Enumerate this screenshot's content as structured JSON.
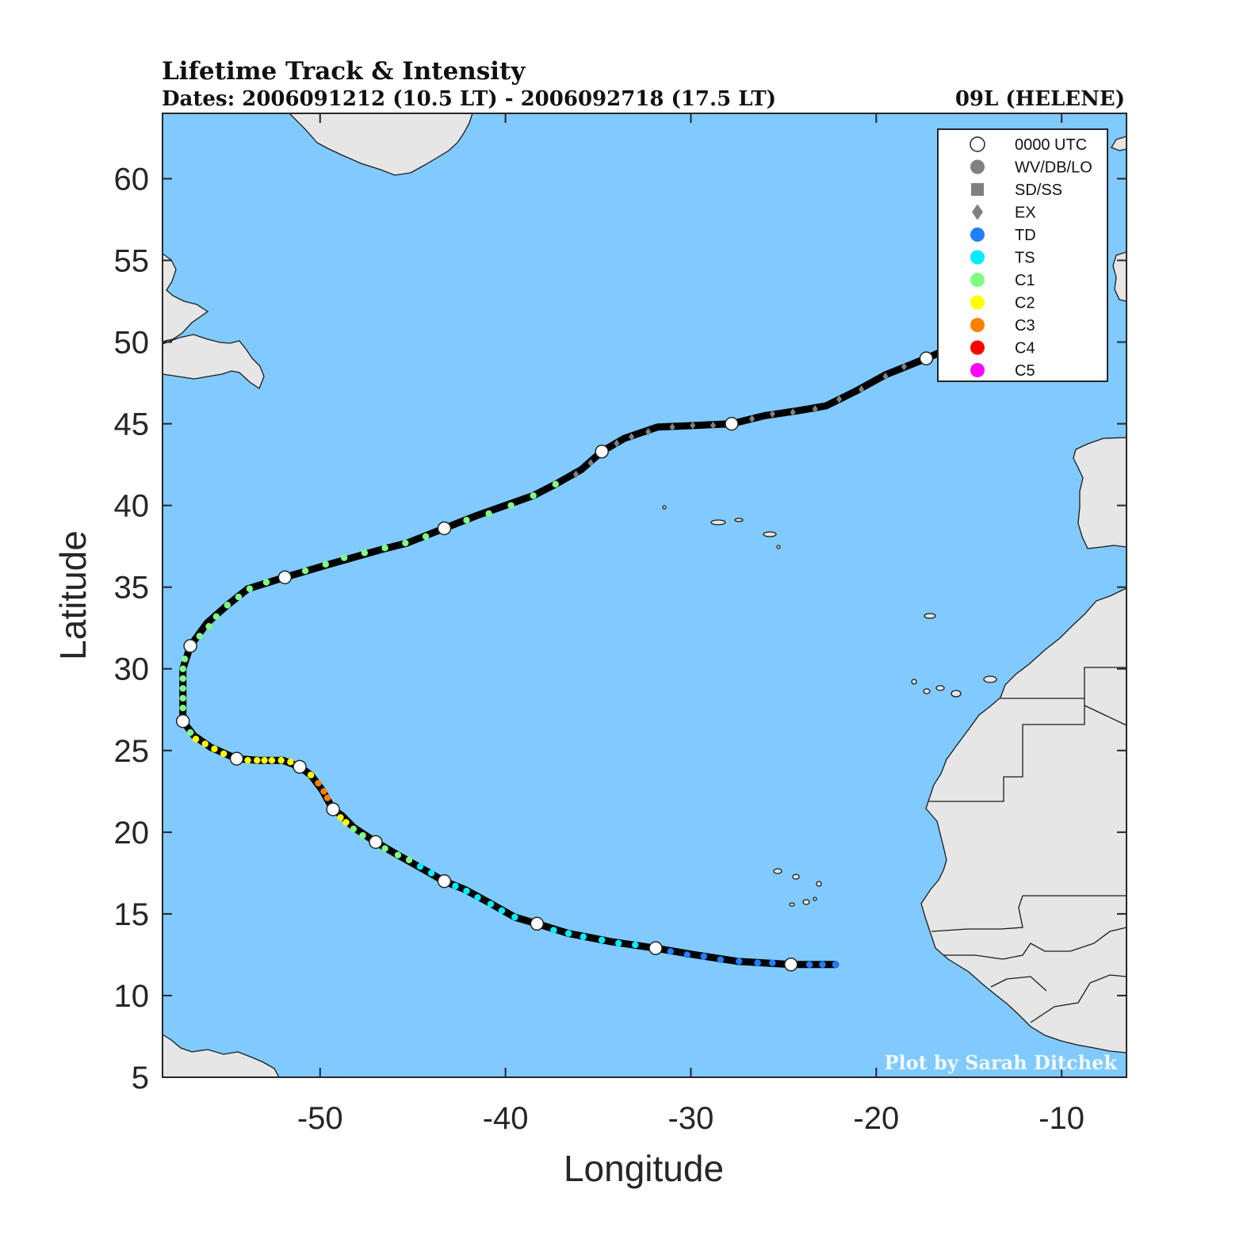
{
  "title": {
    "main": "Lifetime Track & Intensity",
    "dates": "Dates: 2006091212 (10.5 LT) - 2006092718 (17.5 LT)",
    "storm": "09L (HELENE)"
  },
  "credit": "Plot by Sarah Ditchek",
  "colors": {
    "ocean": "#80caff",
    "land": "#e6e6e6",
    "coast": "#1a1a1a",
    "track": "#000000",
    "marker_0000": "#ffffff",
    "wv_db_lo": "#808080",
    "td": "#1f7fff",
    "ts": "#00eeff",
    "c1": "#80ff80",
    "c2": "#ffff00",
    "c3": "#ff8000",
    "c4": "#ff0000",
    "c5": "#ff00ff"
  },
  "legend": {
    "placement": "top-right",
    "items": [
      {
        "label": "0000 UTC",
        "marker": "open-circle",
        "color": "#ffffff"
      },
      {
        "label": "WV/DB/LO",
        "marker": "circle",
        "color": "#808080"
      },
      {
        "label": "SD/SS",
        "marker": "square",
        "color": "#808080"
      },
      {
        "label": "EX",
        "marker": "diamond",
        "color": "#808080"
      },
      {
        "label": "TD",
        "marker": "circle",
        "color": "#1f7fff"
      },
      {
        "label": "TS",
        "marker": "circle",
        "color": "#00eeff"
      },
      {
        "label": "C1",
        "marker": "circle",
        "color": "#80ff80"
      },
      {
        "label": "C2",
        "marker": "circle",
        "color": "#ffff00"
      },
      {
        "label": "C3",
        "marker": "circle",
        "color": "#ff8000"
      },
      {
        "label": "C4",
        "marker": "circle",
        "color": "#ff0000"
      },
      {
        "label": "C5",
        "marker": "circle",
        "color": "#ff00ff"
      }
    ]
  },
  "chart_data": {
    "type": "scatter",
    "xlabel": "Longitude",
    "ylabel": "Latitude",
    "xlim": [
      -58.5,
      -6.5
    ],
    "ylim": [
      5,
      64
    ],
    "x_ticks": [
      -50,
      -40,
      -30,
      -20,
      -10
    ],
    "y_ticks": [
      5,
      10,
      15,
      20,
      25,
      30,
      35,
      40,
      45,
      50,
      55,
      60
    ],
    "track": [
      [
        -22.2,
        11.9
      ],
      [
        -24.6,
        11.9
      ],
      [
        -27.5,
        12.1
      ],
      [
        -29.8,
        12.5
      ],
      [
        -31.9,
        12.9
      ],
      [
        -34.3,
        13.3
      ],
      [
        -36.6,
        13.8
      ],
      [
        -38.3,
        14.4
      ],
      [
        -39.5,
        14.8
      ],
      [
        -40.9,
        15.7
      ],
      [
        -42.2,
        16.5
      ],
      [
        -43.3,
        17.0
      ],
      [
        -44.7,
        17.9
      ],
      [
        -45.8,
        18.6
      ],
      [
        -47.0,
        19.4
      ],
      [
        -48.2,
        20.3
      ],
      [
        -48.8,
        21.0
      ],
      [
        -49.3,
        21.4
      ],
      [
        -49.9,
        22.6
      ],
      [
        -50.5,
        23.5
      ],
      [
        -51.1,
        24.0
      ],
      [
        -52.0,
        24.4
      ],
      [
        -53.3,
        24.4
      ],
      [
        -54.5,
        24.5
      ],
      [
        -55.9,
        25.2
      ],
      [
        -56.8,
        25.9
      ],
      [
        -57.4,
        26.8
      ],
      [
        -57.4,
        28.1
      ],
      [
        -57.4,
        30.0
      ],
      [
        -57.0,
        31.4
      ],
      [
        -56.1,
        32.8
      ],
      [
        -55.0,
        33.9
      ],
      [
        -53.9,
        34.9
      ],
      [
        -51.9,
        35.6
      ],
      [
        -49.5,
        36.4
      ],
      [
        -46.7,
        37.3
      ],
      [
        -45.3,
        37.7
      ],
      [
        -43.3,
        38.6
      ],
      [
        -41.5,
        39.4
      ],
      [
        -40.0,
        40.0
      ],
      [
        -38.5,
        40.6
      ],
      [
        -37.3,
        41.3
      ],
      [
        -35.9,
        42.2
      ],
      [
        -34.8,
        43.3
      ],
      [
        -33.6,
        44.1
      ],
      [
        -31.8,
        44.8
      ],
      [
        -29.8,
        44.9
      ],
      [
        -27.8,
        45.0
      ],
      [
        -26.0,
        45.5
      ],
      [
        -24.2,
        45.8
      ],
      [
        -22.7,
        46.1
      ],
      [
        -21.1,
        47.0
      ],
      [
        -19.5,
        48.0
      ],
      [
        -17.3,
        49.0
      ],
      [
        -16.5,
        49.4
      ]
    ],
    "points": [
      {
        "lon": -22.2,
        "lat": 11.9,
        "cat": "TD"
      },
      {
        "lon": -22.9,
        "lat": 11.9,
        "cat": "TD"
      },
      {
        "lon": -23.6,
        "lat": 11.9,
        "cat": "TD"
      },
      {
        "lon": -24.6,
        "lat": 11.9,
        "cat": "0000"
      },
      {
        "lon": -25.6,
        "lat": 12.0,
        "cat": "TD"
      },
      {
        "lon": -26.4,
        "lat": 12.0,
        "cat": "TD"
      },
      {
        "lon": -27.4,
        "lat": 12.1,
        "cat": "TD"
      },
      {
        "lon": -28.4,
        "lat": 12.2,
        "cat": "TD"
      },
      {
        "lon": -29.3,
        "lat": 12.4,
        "cat": "TD"
      },
      {
        "lon": -30.2,
        "lat": 12.5,
        "cat": "TD"
      },
      {
        "lon": -31.1,
        "lat": 12.7,
        "cat": "TD"
      },
      {
        "lon": -31.9,
        "lat": 12.9,
        "cat": "0000"
      },
      {
        "lon": -33.0,
        "lat": 13.1,
        "cat": "TS"
      },
      {
        "lon": -33.9,
        "lat": 13.2,
        "cat": "TS"
      },
      {
        "lon": -34.8,
        "lat": 13.4,
        "cat": "TS"
      },
      {
        "lon": -35.8,
        "lat": 13.6,
        "cat": "TS"
      },
      {
        "lon": -36.6,
        "lat": 13.8,
        "cat": "TS"
      },
      {
        "lon": -37.4,
        "lat": 14.0,
        "cat": "TS"
      },
      {
        "lon": -38.3,
        "lat": 14.4,
        "cat": "0000"
      },
      {
        "lon": -39.5,
        "lat": 14.8,
        "cat": "TS"
      },
      {
        "lon": -40.2,
        "lat": 15.2,
        "cat": "TS"
      },
      {
        "lon": -40.8,
        "lat": 15.6,
        "cat": "TS"
      },
      {
        "lon": -41.5,
        "lat": 16.0,
        "cat": "TS"
      },
      {
        "lon": -42.1,
        "lat": 16.4,
        "cat": "TS"
      },
      {
        "lon": -42.7,
        "lat": 16.7,
        "cat": "TS"
      },
      {
        "lon": -43.3,
        "lat": 17.0,
        "cat": "0000"
      },
      {
        "lon": -44.0,
        "lat": 17.5,
        "cat": "TS"
      },
      {
        "lon": -44.6,
        "lat": 17.9,
        "cat": "TS"
      },
      {
        "lon": -45.2,
        "lat": 18.3,
        "cat": "C1"
      },
      {
        "lon": -45.8,
        "lat": 18.6,
        "cat": "C1"
      },
      {
        "lon": -46.5,
        "lat": 19.0,
        "cat": "C1"
      },
      {
        "lon": -47.0,
        "lat": 19.4,
        "cat": "0000"
      },
      {
        "lon": -47.7,
        "lat": 19.8,
        "cat": "C1"
      },
      {
        "lon": -48.2,
        "lat": 20.2,
        "cat": "C1"
      },
      {
        "lon": -48.6,
        "lat": 20.6,
        "cat": "C2"
      },
      {
        "lon": -48.9,
        "lat": 20.9,
        "cat": "C2"
      },
      {
        "lon": -49.3,
        "lat": 21.4,
        "cat": "0000"
      },
      {
        "lon": -49.6,
        "lat": 22.1,
        "cat": "C3"
      },
      {
        "lon": -49.8,
        "lat": 22.5,
        "cat": "C3"
      },
      {
        "lon": -50.1,
        "lat": 23.0,
        "cat": "C3"
      },
      {
        "lon": -50.5,
        "lat": 23.5,
        "cat": "C2"
      },
      {
        "lon": -51.1,
        "lat": 24.0,
        "cat": "0000"
      },
      {
        "lon": -51.6,
        "lat": 24.3,
        "cat": "C2"
      },
      {
        "lon": -52.1,
        "lat": 24.4,
        "cat": "C2"
      },
      {
        "lon": -52.6,
        "lat": 24.4,
        "cat": "C2"
      },
      {
        "lon": -53.0,
        "lat": 24.4,
        "cat": "C2"
      },
      {
        "lon": -53.4,
        "lat": 24.4,
        "cat": "C2"
      },
      {
        "lon": -53.9,
        "lat": 24.4,
        "cat": "C2"
      },
      {
        "lon": -54.5,
        "lat": 24.5,
        "cat": "0000"
      },
      {
        "lon": -55.2,
        "lat": 24.8,
        "cat": "C2"
      },
      {
        "lon": -55.7,
        "lat": 25.1,
        "cat": "C2"
      },
      {
        "lon": -56.2,
        "lat": 25.4,
        "cat": "C2"
      },
      {
        "lon": -56.7,
        "lat": 25.7,
        "cat": "C2"
      },
      {
        "lon": -57.0,
        "lat": 26.1,
        "cat": "C1"
      },
      {
        "lon": -57.4,
        "lat": 26.8,
        "cat": "0000"
      },
      {
        "lon": -57.4,
        "lat": 27.6,
        "cat": "C1"
      },
      {
        "lon": -57.4,
        "lat": 28.2,
        "cat": "C1"
      },
      {
        "lon": -57.4,
        "lat": 28.8,
        "cat": "C1"
      },
      {
        "lon": -57.4,
        "lat": 29.4,
        "cat": "C1"
      },
      {
        "lon": -57.4,
        "lat": 30.0,
        "cat": "C1"
      },
      {
        "lon": -57.3,
        "lat": 30.6,
        "cat": "C1"
      },
      {
        "lon": -57.0,
        "lat": 31.4,
        "cat": "0000"
      },
      {
        "lon": -56.5,
        "lat": 32.0,
        "cat": "C1"
      },
      {
        "lon": -56.0,
        "lat": 32.6,
        "cat": "C1"
      },
      {
        "lon": -55.6,
        "lat": 33.2,
        "cat": "C1"
      },
      {
        "lon": -55.0,
        "lat": 33.9,
        "cat": "C1"
      },
      {
        "lon": -54.4,
        "lat": 34.4,
        "cat": "C1"
      },
      {
        "lon": -53.8,
        "lat": 34.9,
        "cat": "C1"
      },
      {
        "lon": -52.9,
        "lat": 35.3,
        "cat": "C1"
      },
      {
        "lon": -51.9,
        "lat": 35.6,
        "cat": "0000"
      },
      {
        "lon": -50.8,
        "lat": 36.0,
        "cat": "C1"
      },
      {
        "lon": -49.7,
        "lat": 36.4,
        "cat": "C1"
      },
      {
        "lon": -48.7,
        "lat": 36.8,
        "cat": "C1"
      },
      {
        "lon": -47.6,
        "lat": 37.1,
        "cat": "C1"
      },
      {
        "lon": -46.5,
        "lat": 37.4,
        "cat": "C1"
      },
      {
        "lon": -45.4,
        "lat": 37.7,
        "cat": "C1"
      },
      {
        "lon": -44.3,
        "lat": 38.1,
        "cat": "C1"
      },
      {
        "lon": -43.3,
        "lat": 38.6,
        "cat": "0000"
      },
      {
        "lon": -42.1,
        "lat": 39.1,
        "cat": "C1"
      },
      {
        "lon": -40.9,
        "lat": 39.5,
        "cat": "C1"
      },
      {
        "lon": -39.7,
        "lat": 40.0,
        "cat": "C1"
      },
      {
        "lon": -38.5,
        "lat": 40.6,
        "cat": "C1"
      },
      {
        "lon": -37.3,
        "lat": 41.3,
        "cat": "C1"
      },
      {
        "lon": -36.2,
        "lat": 41.9,
        "cat": "EX"
      },
      {
        "lon": -35.4,
        "lat": 42.6,
        "cat": "EX"
      },
      {
        "lon": -34.8,
        "lat": 43.3,
        "cat": "0000"
      },
      {
        "lon": -34.0,
        "lat": 43.8,
        "cat": "EX"
      },
      {
        "lon": -33.2,
        "lat": 44.2,
        "cat": "EX"
      },
      {
        "lon": -32.3,
        "lat": 44.5,
        "cat": "EX"
      },
      {
        "lon": -31.0,
        "lat": 44.8,
        "cat": "EX"
      },
      {
        "lon": -29.9,
        "lat": 44.9,
        "cat": "EX"
      },
      {
        "lon": -28.8,
        "lat": 44.9,
        "cat": "EX"
      },
      {
        "lon": -27.8,
        "lat": 45.0,
        "cat": "0000"
      },
      {
        "lon": -26.7,
        "lat": 45.3,
        "cat": "EX"
      },
      {
        "lon": -25.6,
        "lat": 45.6,
        "cat": "EX"
      },
      {
        "lon": -24.5,
        "lat": 45.7,
        "cat": "EX"
      },
      {
        "lon": -23.3,
        "lat": 45.9,
        "cat": "EX"
      },
      {
        "lon": -22.0,
        "lat": 46.5,
        "cat": "EX"
      },
      {
        "lon": -20.8,
        "lat": 47.1,
        "cat": "EX"
      },
      {
        "lon": -19.5,
        "lat": 47.9,
        "cat": "EX"
      },
      {
        "lon": -18.5,
        "lat": 48.5,
        "cat": "EX"
      },
      {
        "lon": -17.3,
        "lat": 49.0,
        "cat": "0000"
      }
    ]
  }
}
